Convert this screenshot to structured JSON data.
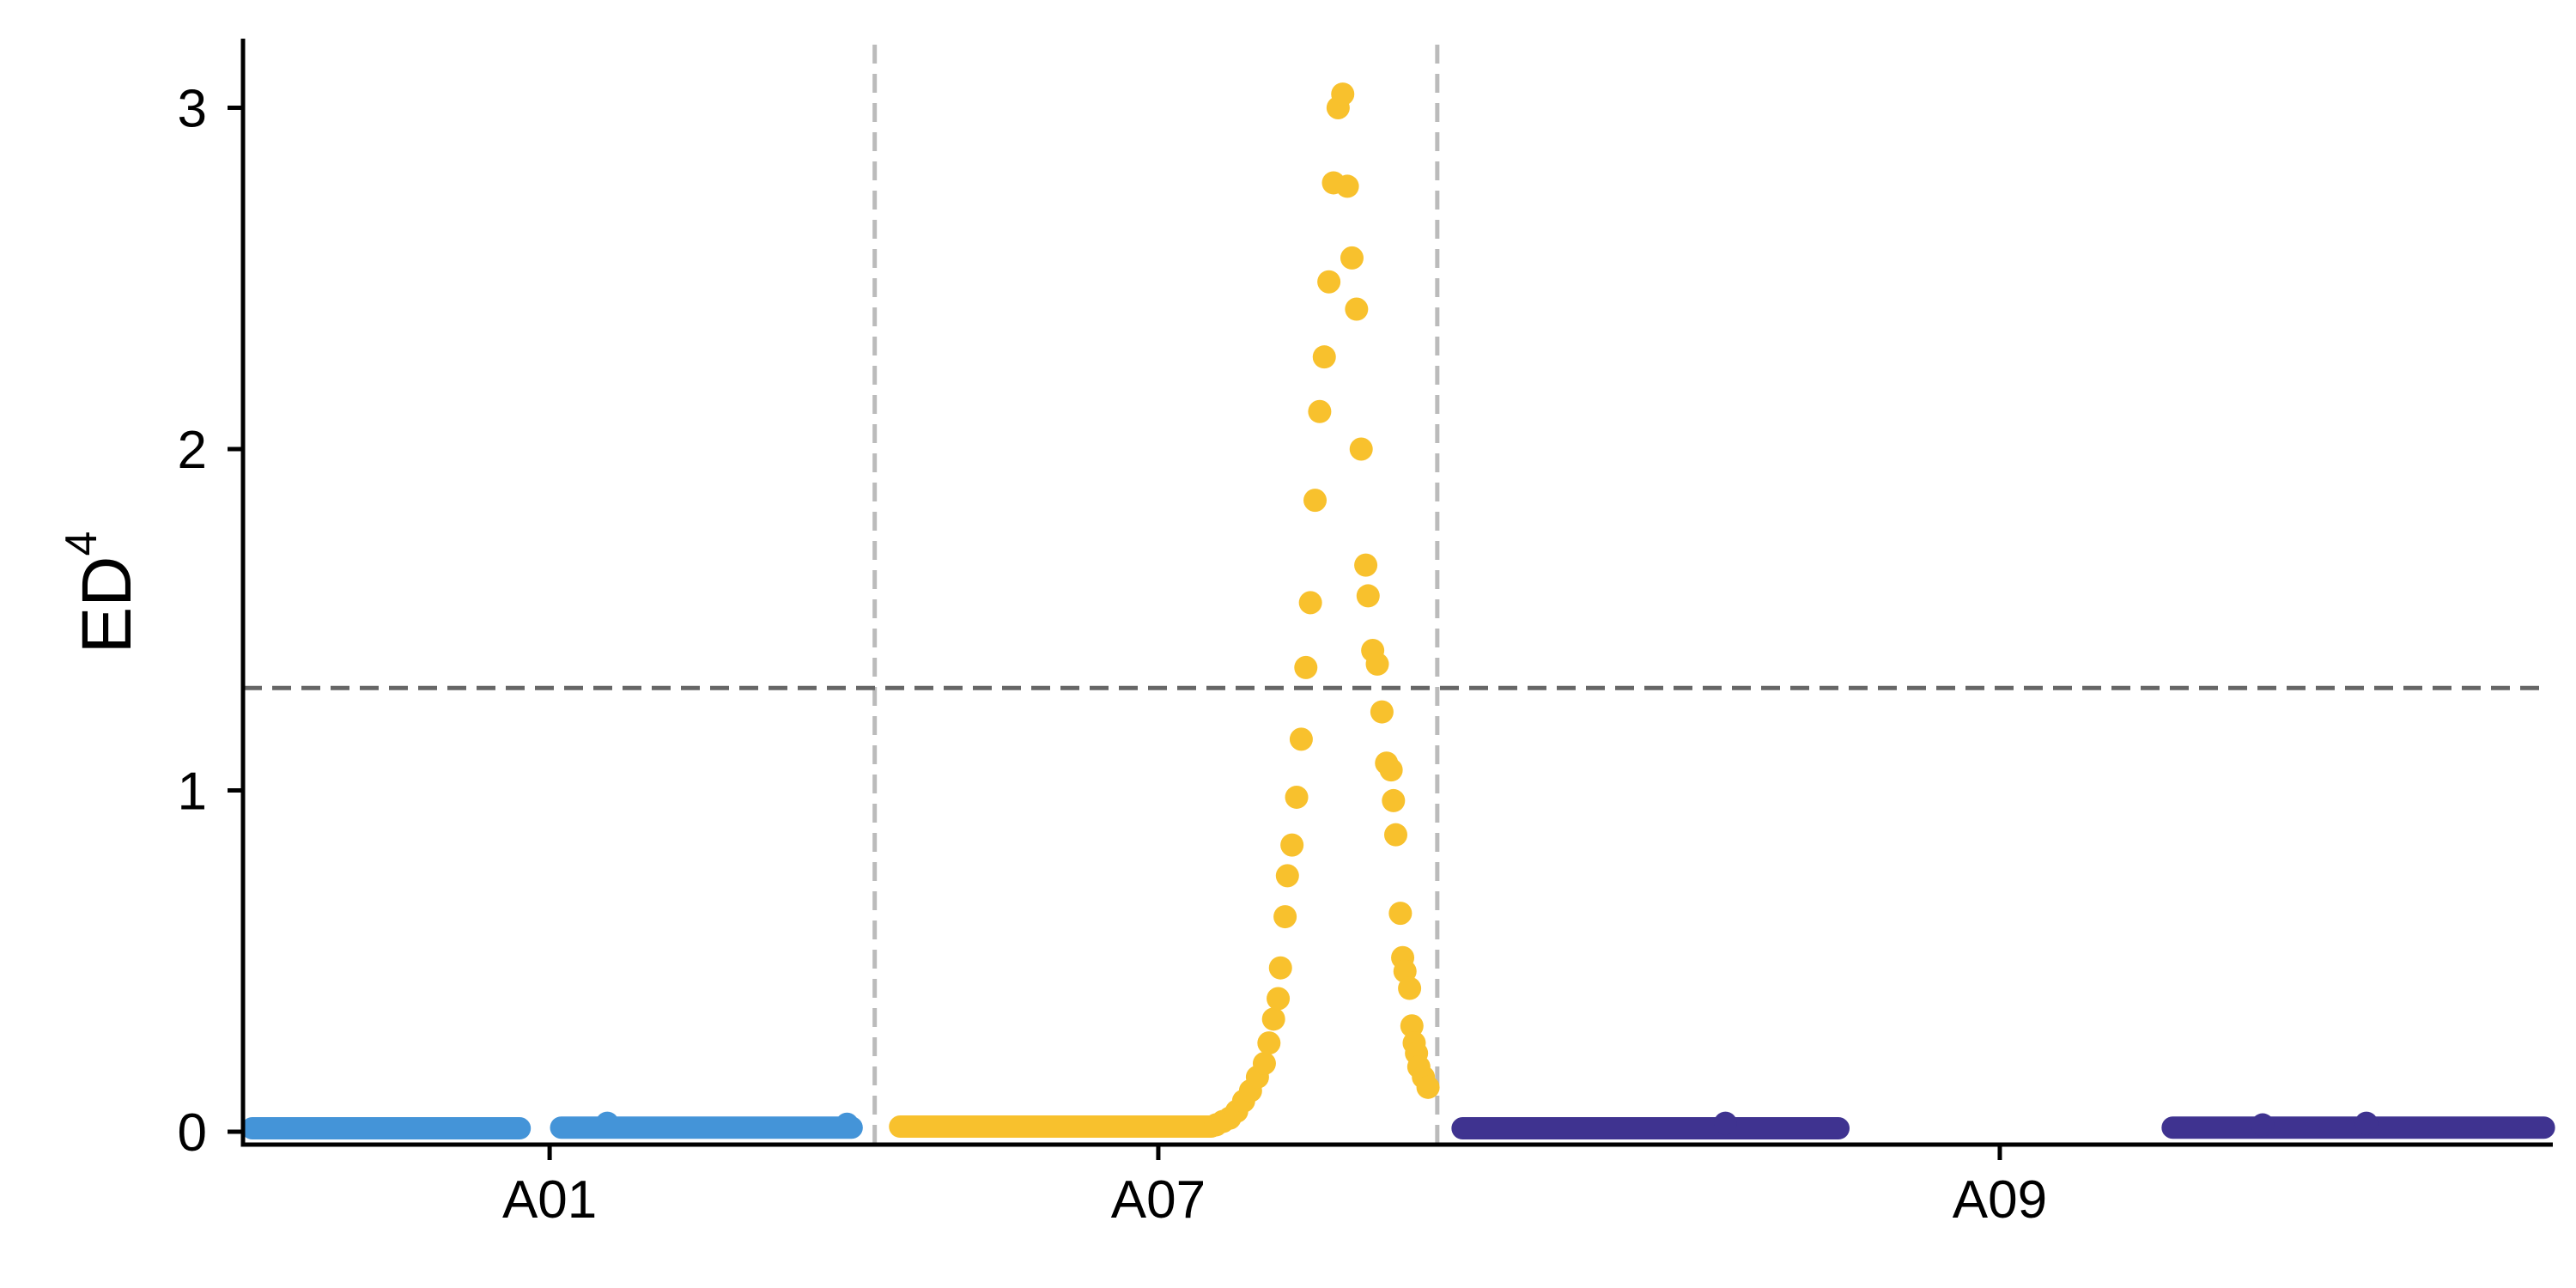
{
  "chart_data": {
    "type": "scatter",
    "title": "",
    "xlabel": "",
    "ylabel": "ED",
    "ylabel_superscript": "4",
    "ylim": [
      -0.03,
      3.2
    ],
    "yticks": [
      0,
      1,
      2,
      3
    ],
    "threshold": 1.3,
    "threshold_color": "#666666",
    "boundary_color": "#bbbbbb",
    "grid": false,
    "legend": "none",
    "chromosome_ticks": [
      {
        "label": "A01",
        "position": 0.133
      },
      {
        "label": "A07",
        "position": 0.397
      },
      {
        "label": "A09",
        "position": 0.762
      }
    ],
    "chromosome_boundaries": [
      0.274,
      0.518
    ],
    "series": [
      {
        "chromosome": "A01",
        "color": "#4494d8",
        "segments": [
          {
            "start": 0.004,
            "end": 0.12,
            "value": 0.01
          },
          {
            "start": 0.138,
            "end": 0.264,
            "value": 0.012
          }
        ],
        "points": [
          [
            0.158,
            0.025
          ],
          [
            0.262,
            0.022
          ]
        ]
      },
      {
        "chromosome": "A07",
        "color": "#f8c12d",
        "segments": [
          {
            "start": 0.285,
            "end": 0.42,
            "value": 0.015
          }
        ],
        "points": [
          [
            0.422,
            0.02
          ],
          [
            0.425,
            0.03
          ],
          [
            0.428,
            0.04
          ],
          [
            0.431,
            0.06
          ],
          [
            0.434,
            0.09
          ],
          [
            0.437,
            0.12
          ],
          [
            0.44,
            0.16
          ],
          [
            0.443,
            0.2
          ],
          [
            0.445,
            0.26
          ],
          [
            0.447,
            0.33
          ],
          [
            0.449,
            0.39
          ],
          [
            0.45,
            0.48
          ],
          [
            0.452,
            0.63
          ],
          [
            0.453,
            0.75
          ],
          [
            0.455,
            0.84
          ],
          [
            0.457,
            0.98
          ],
          [
            0.459,
            1.15
          ],
          [
            0.461,
            1.36
          ],
          [
            0.463,
            1.55
          ],
          [
            0.465,
            1.85
          ],
          [
            0.467,
            2.11
          ],
          [
            0.469,
            2.27
          ],
          [
            0.471,
            2.49
          ],
          [
            0.473,
            2.78
          ],
          [
            0.475,
            3.0
          ],
          [
            0.477,
            3.04
          ],
          [
            0.479,
            2.77
          ],
          [
            0.481,
            2.56
          ],
          [
            0.483,
            2.41
          ],
          [
            0.485,
            2.0
          ],
          [
            0.487,
            1.66
          ],
          [
            0.488,
            1.57
          ],
          [
            0.49,
            1.41
          ],
          [
            0.492,
            1.37
          ],
          [
            0.494,
            1.23
          ],
          [
            0.496,
            1.08
          ],
          [
            0.498,
            1.06
          ],
          [
            0.499,
            0.97
          ],
          [
            0.5,
            0.87
          ],
          [
            0.502,
            0.64
          ],
          [
            0.503,
            0.51
          ],
          [
            0.504,
            0.47
          ],
          [
            0.506,
            0.42
          ],
          [
            0.507,
            0.31
          ],
          [
            0.508,
            0.26
          ],
          [
            0.509,
            0.23
          ],
          [
            0.51,
            0.19
          ],
          [
            0.512,
            0.16
          ],
          [
            0.514,
            0.13
          ]
        ]
      },
      {
        "chromosome": "A09",
        "color": "#3f3390",
        "segments": [
          {
            "start": 0.529,
            "end": 0.692,
            "value": 0.01
          },
          {
            "start": 0.837,
            "end": 0.998,
            "value": 0.012
          }
        ],
        "points": [
          [
            0.643,
            0.025
          ],
          [
            0.876,
            0.02
          ],
          [
            0.921,
            0.025
          ]
        ]
      }
    ]
  }
}
